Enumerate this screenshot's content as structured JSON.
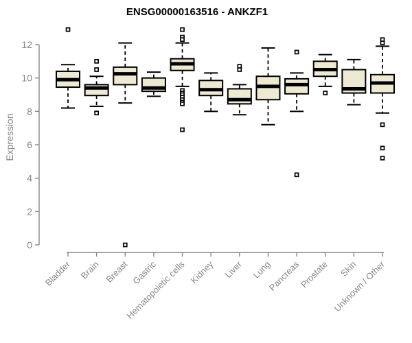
{
  "page": {
    "background": "#ffffff"
  },
  "chart_data": {
    "type": "boxplot",
    "title": "ENSG00000163516 - ANKZF1",
    "ylabel": "Expression",
    "xlabel": "",
    "ylim": [
      0,
      12
    ],
    "yticks": [
      "0",
      "2",
      "4",
      "6",
      "8",
      "10",
      "12"
    ],
    "grid": false,
    "legend": false,
    "x_label_rotation_deg": 45,
    "categories": [
      "Bladder",
      "Brain",
      "Breast",
      "Gastric",
      "Hematopoietic cells",
      "Kidney",
      "Liver",
      "Lung",
      "Pancreas",
      "Prostate",
      "Skin",
      "Unknown / Other"
    ],
    "series": [
      {
        "name": "Bladder",
        "low": 8.2,
        "q1": 9.45,
        "median": 9.9,
        "q3": 10.4,
        "high": 10.8,
        "outliers": [
          12.9
        ]
      },
      {
        "name": "Brain",
        "low": 8.3,
        "q1": 8.95,
        "median": 9.4,
        "q3": 9.6,
        "high": 10.1,
        "outliers": [
          11.0,
          10.5,
          7.9
        ]
      },
      {
        "name": "Breast",
        "low": 8.5,
        "q1": 9.6,
        "median": 10.25,
        "q3": 10.65,
        "high": 12.1,
        "outliers": [
          0.0
        ]
      },
      {
        "name": "Gastric",
        "low": 8.9,
        "q1": 9.2,
        "median": 9.4,
        "q3": 10.0,
        "high": 10.35,
        "outliers": []
      },
      {
        "name": "Hematopoietic cells",
        "low": 9.5,
        "q1": 10.45,
        "median": 10.85,
        "q3": 11.15,
        "high": 12.1,
        "outliers": [
          12.9,
          12.45,
          12.3,
          9.25,
          9.1,
          9.0,
          8.85,
          8.7,
          8.55,
          8.45,
          6.9
        ]
      },
      {
        "name": "Kidney",
        "low": 8.0,
        "q1": 8.95,
        "median": 9.3,
        "q3": 9.85,
        "high": 10.3,
        "outliers": []
      },
      {
        "name": "Liver",
        "low": 7.8,
        "q1": 8.45,
        "median": 8.7,
        "q3": 9.35,
        "high": 9.6,
        "outliers": [
          10.7,
          10.5
        ]
      },
      {
        "name": "Lung",
        "low": 7.2,
        "q1": 8.7,
        "median": 9.5,
        "q3": 10.1,
        "high": 11.8,
        "outliers": []
      },
      {
        "name": "Pancreas",
        "low": 8.0,
        "q1": 9.05,
        "median": 9.6,
        "q3": 9.95,
        "high": 10.3,
        "outliers": [
          11.55,
          4.2
        ]
      },
      {
        "name": "Prostate",
        "low": 9.5,
        "q1": 10.1,
        "median": 10.5,
        "q3": 11.0,
        "high": 11.4,
        "outliers": [
          9.1
        ]
      },
      {
        "name": "Skin",
        "low": 8.4,
        "q1": 9.1,
        "median": 9.35,
        "q3": 10.5,
        "high": 11.1,
        "outliers": []
      },
      {
        "name": "Unknown / Other",
        "low": 7.9,
        "q1": 9.1,
        "median": 9.7,
        "q3": 10.2,
        "high": 11.9,
        "outliers": [
          12.3,
          12.1,
          7.2,
          5.8,
          5.2
        ]
      }
    ],
    "colors": {
      "box_fill": "#eee9d3",
      "box_border": "#000000",
      "median": "#000000",
      "whisker": "#000000",
      "outlier_stroke": "#000000",
      "outlier_fill": "#ffffff",
      "axis": "#878787",
      "tick_label": "#878787",
      "title": "#000000"
    }
  }
}
